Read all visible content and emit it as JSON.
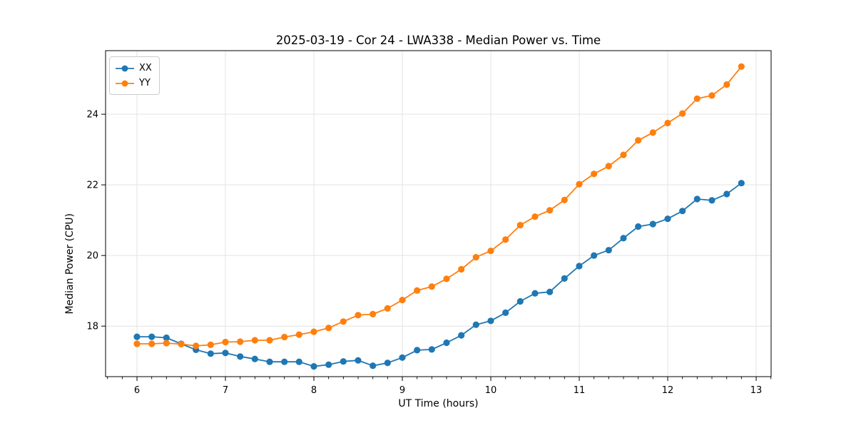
{
  "chart_data": {
    "type": "line",
    "title": "2025-03-19 - Cor 24 - LWA338 - Median Power vs. Time",
    "xlabel": "UT Time (hours)",
    "ylabel": "Median Power (CPU)",
    "x": [
      6.0,
      6.167,
      6.333,
      6.5,
      6.667,
      6.833,
      7.0,
      7.167,
      7.333,
      7.5,
      7.667,
      7.833,
      8.0,
      8.167,
      8.333,
      8.5,
      8.667,
      8.833,
      9.0,
      9.167,
      9.333,
      9.5,
      9.667,
      9.833,
      10.0,
      10.167,
      10.333,
      10.5,
      10.667,
      10.833,
      11.0,
      11.167,
      11.333,
      11.5,
      11.667,
      11.833,
      12.0,
      12.167,
      12.333,
      12.5,
      12.667,
      12.833
    ],
    "series": [
      {
        "name": "XX",
        "color": "#1f77b4",
        "values": [
          17.7,
          17.7,
          17.67,
          17.5,
          17.33,
          17.22,
          17.24,
          17.14,
          17.07,
          16.99,
          16.99,
          16.99,
          16.86,
          16.91,
          17.0,
          17.03,
          16.88,
          16.96,
          17.11,
          17.32,
          17.34,
          17.53,
          17.74,
          18.04,
          18.15,
          18.38,
          18.7,
          18.93,
          18.97,
          19.35,
          19.7,
          20.0,
          20.15,
          20.49,
          20.82,
          20.89,
          21.04,
          21.26,
          21.6,
          21.56,
          21.74,
          22.05
        ]
      },
      {
        "name": "YY",
        "color": "#ff7f0e",
        "values": [
          17.5,
          17.5,
          17.52,
          17.49,
          17.44,
          17.47,
          17.55,
          17.56,
          17.6,
          17.6,
          17.69,
          17.76,
          17.84,
          17.95,
          18.13,
          18.31,
          18.34,
          18.5,
          18.74,
          19.01,
          19.12,
          19.34,
          19.61,
          19.95,
          20.13,
          20.45,
          20.86,
          21.1,
          21.28,
          21.57,
          22.02,
          22.31,
          22.53,
          22.85,
          23.26,
          23.48,
          23.75,
          24.02,
          24.44,
          24.53,
          24.84,
          25.35
        ]
      }
    ],
    "xlim": [
      5.645,
      13.169
    ],
    "ylim": [
      16.57,
      25.8
    ],
    "xticks": [
      6,
      7,
      8,
      9,
      10,
      11,
      12,
      13
    ],
    "yticks": [
      18,
      20,
      22,
      24
    ],
    "minor_xtick_step": 0.16667,
    "grid": true,
    "grid_color": "#e3e3e3",
    "spine_color": "#000000",
    "marker": "o",
    "legend_position": "upper left"
  }
}
